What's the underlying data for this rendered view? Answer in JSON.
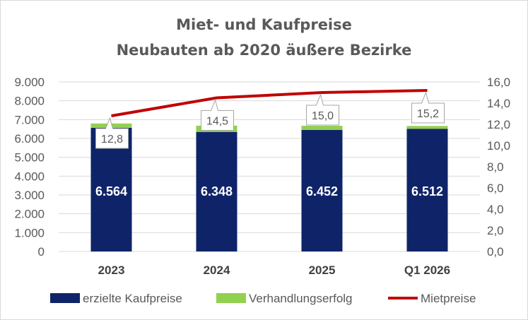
{
  "chart_data": {
    "type": "bar",
    "title_lines": [
      "Miet- und Kaufpreise",
      "Neubauten ab 2020 äußere Bezirke"
    ],
    "categories": [
      "2023",
      "2024",
      "2025",
      "Q1 2026"
    ],
    "series": [
      {
        "name": "erzielte Kaufpreise",
        "type": "bar",
        "stack": "price",
        "axis": "left",
        "color": "#0f2468",
        "values": [
          6564,
          6348,
          6452,
          6512
        ]
      },
      {
        "name": "Verhandlungserfolg",
        "type": "bar",
        "stack": "price",
        "axis": "left",
        "color": "#92d050",
        "values": [
          230,
          330,
          220,
          150
        ]
      },
      {
        "name": "Mietpreise",
        "type": "line",
        "axis": "right",
        "color": "#c00000",
        "values": [
          12.8,
          14.5,
          15.0,
          15.2
        ]
      }
    ],
    "bar_value_labels": [
      "6.564",
      "6.348",
      "6.452",
      "6.512"
    ],
    "line_value_labels": [
      "12,8",
      "14,5",
      "15,0",
      "15,2"
    ],
    "y_left": {
      "min": 0,
      "max": 9000,
      "ticks": [
        "0",
        "1.000",
        "2.000",
        "3.000",
        "4.000",
        "5.000",
        "6.000",
        "7.000",
        "8.000",
        "9.000"
      ]
    },
    "y_right": {
      "min": 0,
      "max": 16,
      "ticks": [
        "0,0",
        "2,0",
        "4,0",
        "6,0",
        "8,0",
        "10,0",
        "12,0",
        "14,0",
        "16,0"
      ]
    },
    "grid": true,
    "legend_position": "bottom"
  }
}
